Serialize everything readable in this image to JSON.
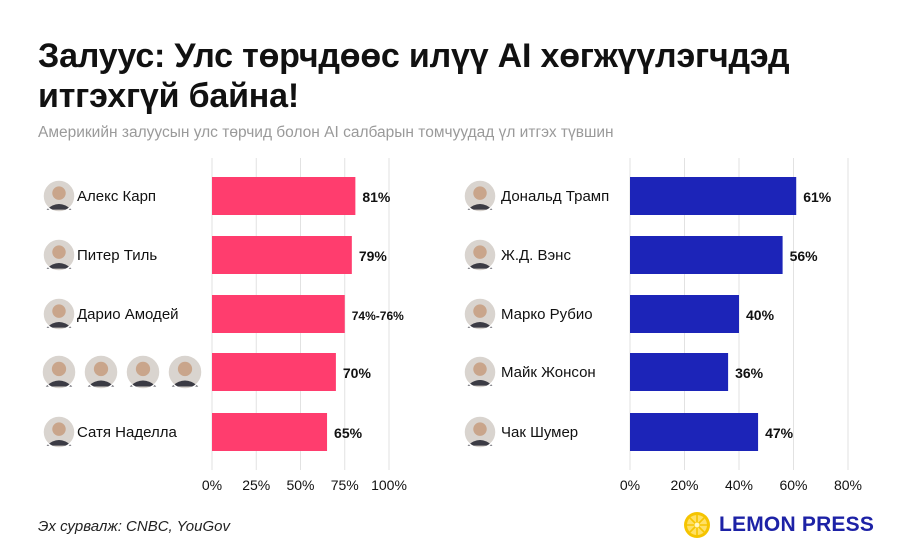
{
  "header": {
    "title_line1": "Залуус: Улс төрчдөөс илүү AI хөгжүүлэгчдэд",
    "title_line2": "итгэхгүй байна!",
    "subtitle": "Америкийн залуусын улс төрчид болон AI салбарын томчуудад үл итгэх түвшин"
  },
  "footer": {
    "source": "Эх сурвалж: CNBC, YouGov",
    "brand": "LEMON PRESS"
  },
  "colors": {
    "left_bar": "#ff3d6e",
    "right_bar": "#1c24b8",
    "grid": "#e2e2e2",
    "brand": "#1d22a6",
    "lemon": "#f5c400"
  },
  "chart_data": [
    {
      "type": "bar",
      "orientation": "horizontal",
      "categories": [
        "Алекс Карп",
        "Питер Тиль",
        "Дарио Амодей",
        "",
        "Сатя Наделла"
      ],
      "values": [
        81,
        79,
        75,
        70,
        65
      ],
      "value_labels": [
        "81%",
        "79%",
        "74%-76%",
        "70%",
        "65%"
      ],
      "icons": [
        [
          "avatar"
        ],
        [
          "avatar"
        ],
        [
          "avatar"
        ],
        [
          "avatar",
          "avatar",
          "avatar",
          "avatar"
        ],
        [
          "avatar"
        ]
      ],
      "xlim": [
        0,
        100
      ],
      "xticks": [
        0,
        25,
        50,
        75,
        100
      ],
      "xtick_labels": [
        "0%",
        "25%",
        "50%",
        "75%",
        "100%"
      ],
      "color": "#ff3d6e",
      "grid": true
    },
    {
      "type": "bar",
      "orientation": "horizontal",
      "categories": [
        "Дональд Трамп",
        "Ж.Д. Вэнс",
        "Марко Рубио",
        "Майк Жонсон",
        "Чак Шумер"
      ],
      "values": [
        61,
        56,
        40,
        36,
        47
      ],
      "value_labels": [
        "61%",
        "56%",
        "40%",
        "36%",
        "47%"
      ],
      "icons": [
        [
          "avatar"
        ],
        [
          "avatar"
        ],
        [
          "avatar"
        ],
        [
          "avatar"
        ],
        [
          "avatar"
        ]
      ],
      "xlim": [
        0,
        80
      ],
      "xticks": [
        0,
        20,
        40,
        60,
        80
      ],
      "xtick_labels": [
        "0%",
        "20%",
        "40%",
        "60%",
        "80%"
      ],
      "color": "#1c24b8",
      "grid": true
    }
  ]
}
